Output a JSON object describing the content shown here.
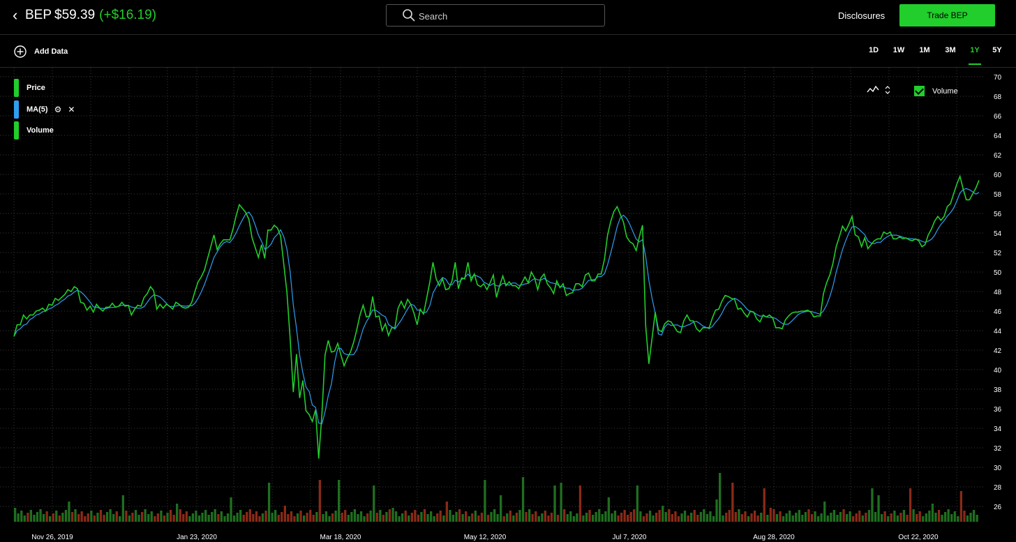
{
  "header": {
    "back_icon": "chevron-left-icon",
    "symbol": "BEP",
    "price": "$59.39",
    "change": "(+$16.19)",
    "search_placeholder": "Search",
    "search_icon": "search-icon",
    "disclosures": "Disclosures",
    "trade_button": "Trade BEP"
  },
  "toolbar": {
    "add_data_icon": "plus-circle-icon",
    "add_data": "Add Data",
    "ranges": [
      "1D",
      "1W",
      "1M",
      "3M",
      "1Y",
      "5Y"
    ],
    "active_range": "1Y"
  },
  "legend": {
    "price": "Price",
    "ma": "MA(5)",
    "ma_settings_icon": "gear-icon",
    "ma_remove_icon": "close-icon",
    "volume": "Volume"
  },
  "controls": {
    "chart_type_icon": "line-chart-icon",
    "volume_label": "Volume",
    "volume_checked": true
  },
  "colors": {
    "accent": "#21ce2b",
    "price_line": "#21ce2b",
    "ma_line": "#2f9ff0",
    "volume_up": "#1f6f1f",
    "volume_down": "#8a2a17",
    "background": "#000000",
    "grid": "#3a3a3a"
  },
  "chart_data": {
    "type": "line",
    "y_ticks": [
      "70",
      "68",
      "66",
      "64",
      "62",
      "60",
      "58",
      "56",
      "54",
      "52",
      "50",
      "48",
      "46",
      "44",
      "42",
      "40",
      "38",
      "36",
      "34",
      "32",
      "30",
      "28",
      "26"
    ],
    "ylim": [
      24.5,
      70.5
    ],
    "x_ticks": [
      "Nov 26, 2019",
      "Jan 23, 2020",
      "Mar 18, 2020",
      "May 12, 2020",
      "Jul 7, 2020",
      "Aug 28, 2020",
      "Oct 22, 2020"
    ],
    "grid": true,
    "series": [
      {
        "name": "Price",
        "values": [
          43.4,
          44.6,
          44.6,
          45.6,
          45.2,
          45.6,
          45.6,
          46.0,
          46.1,
          46.3,
          46.0,
          46.7,
          46.6,
          47.3,
          47.1,
          47.4,
          47.7,
          48.2,
          48.0,
          48.5,
          48.3,
          46.9,
          46.8,
          46.1,
          46.5,
          45.9,
          46.7,
          46.3,
          46.0,
          46.4,
          46.4,
          46.8,
          46.4,
          46.5,
          46.9,
          46.5,
          46.6,
          45.6,
          46.2,
          46.6,
          46.5,
          47.4,
          47.8,
          48.5,
          48.1,
          46.2,
          46.7,
          46.3,
          46.7,
          46.5,
          46.2,
          46.9,
          46.7,
          46.4,
          46.3,
          46.4,
          46.9,
          48.0,
          49.0,
          49.5,
          50.2,
          51.4,
          52.6,
          53.8,
          52.3,
          52.9,
          53.3,
          53.3,
          53.3,
          54.4,
          55.8,
          56.9,
          56.5,
          56.1,
          55.4,
          53.5,
          52.5,
          51.5,
          52.8,
          51.4,
          54.3,
          54.3,
          54.8,
          54.5,
          53.7,
          50.8,
          47.9,
          43.2,
          37.7,
          41.6,
          37.1,
          38.9,
          35.8,
          35.4,
          34.7,
          35.9,
          30.9,
          35.4,
          41.5,
          43.0,
          41.8,
          41.9,
          42.7,
          41.5,
          40.4,
          41.2,
          41.8,
          42.8,
          44.1,
          45.6,
          46.6,
          45.4,
          45.5,
          47.5,
          45.4,
          45.5,
          44.0,
          44.7,
          43.5,
          44.3,
          44.3,
          46.3,
          47.0,
          46.3,
          47.2,
          46.7,
          45.8,
          44.6,
          46.2,
          45.7,
          47.3,
          49.0,
          51.0,
          49.3,
          48.6,
          49.3,
          48.2,
          48.3,
          49.1,
          51.0,
          48.3,
          49.4,
          49.3,
          51.0,
          49.1,
          49.8,
          48.7,
          48.5,
          48.8,
          48.2,
          48.9,
          49.7,
          47.4,
          48.6,
          49.6,
          48.6,
          49.0,
          48.6,
          48.6,
          48.3,
          48.9,
          49.5,
          48.9,
          50.0,
          49.4,
          48.2,
          49.4,
          49.8,
          48.8,
          48.4,
          47.8,
          49.1,
          48.4,
          48.8,
          47.6,
          47.8,
          47.9,
          48.8,
          48.8,
          48.5,
          49.7,
          49.9,
          49.1,
          49.1,
          49.8,
          49.8,
          51.3,
          53.8,
          55.2,
          56.2,
          56.7,
          55.9,
          55.1,
          53.6,
          53.1,
          52.9,
          52.2,
          53.6,
          54.8,
          44.5,
          40.6,
          43.2,
          45.9,
          44.1,
          43.9,
          44.7,
          45.0,
          44.9,
          44.4,
          43.9,
          43.8,
          45.0,
          45.6,
          45.0,
          45.0,
          44.2,
          43.9,
          44.3,
          44.3,
          44.3,
          45.3,
          46.1,
          46.2,
          47.0,
          47.6,
          47.5,
          47.3,
          47.2,
          46.2,
          46.3,
          45.8,
          45.4,
          46.0,
          45.9,
          45.2,
          44.9,
          45.6,
          45.4,
          45.6,
          45.3,
          44.3,
          44.3,
          44.2,
          45.1,
          45.5,
          45.8,
          45.9,
          45.9,
          46.0,
          46.0,
          46.1,
          45.9,
          45.4,
          45.5,
          45.5,
          47.8,
          48.9,
          49.7,
          50.9,
          52.6,
          53.6,
          54.7,
          54.2,
          54.9,
          55.7,
          53.8,
          53.6,
          52.6,
          53.5,
          52.4,
          52.8,
          53.2,
          53.4,
          53.4,
          54.1,
          53.9,
          54.1,
          53.4,
          53.4,
          53.6,
          53.4,
          53.5,
          53.3,
          53.2,
          53.4,
          53.2,
          52.6,
          52.8,
          53.8,
          54.4,
          55.2,
          55.7,
          55.3,
          55.7,
          56.7,
          57.0,
          58.0,
          59.0,
          59.8,
          58.5,
          57.4,
          57.4,
          58.0,
          58.6,
          59.4
        ]
      }
    ],
    "volume_bars": 304
  }
}
